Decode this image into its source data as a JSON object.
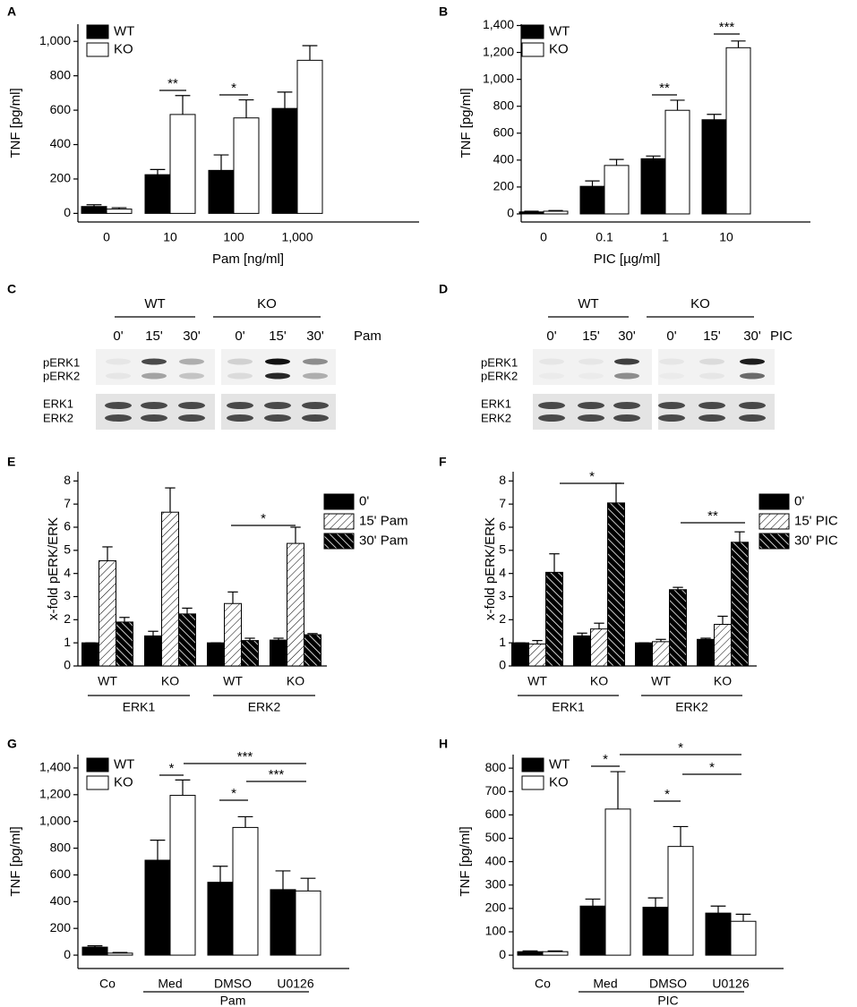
{
  "chart_data": [
    {
      "type": "bar",
      "panel_label": "A",
      "ylabel": "TNF [pg/ml]",
      "xlabel": "Pam [ng/ml]",
      "categories": [
        "0",
        "10",
        "100",
        "1,000"
      ],
      "series": [
        {
          "name": "WT",
          "color": "#000000",
          "values": [
            40,
            225,
            250,
            610
          ],
          "errors": [
            10,
            30,
            90,
            95
          ]
        },
        {
          "name": "KO",
          "color": "#ffffff",
          "values": [
            25,
            575,
            555,
            890
          ],
          "errors": [
            8,
            110,
            105,
            85
          ]
        }
      ],
      "ylim": [
        -50,
        1100
      ],
      "yticks": [
        0,
        200,
        400,
        600,
        800,
        {
          "value": 1000,
          "label": "1,000"
        }
      ],
      "legend": "upper left",
      "annotations": [
        "**",
        "*"
      ]
    },
    {
      "type": "bar",
      "panel_label": "B",
      "ylabel": "TNF [pg/ml]",
      "xlabel": "PIC [µg/ml]",
      "categories": [
        "0",
        "0.1",
        "1",
        "10"
      ],
      "series": [
        {
          "name": "WT",
          "color": "#000000",
          "values": [
            15,
            205,
            410,
            700
          ],
          "errors": [
            5,
            40,
            20,
            40
          ]
        },
        {
          "name": "KO",
          "color": "#ffffff",
          "values": [
            20,
            360,
            770,
            1235
          ],
          "errors": [
            5,
            45,
            75,
            50
          ]
        }
      ],
      "ylim": [
        -60,
        1410
      ],
      "yticks": [
        0,
        200,
        400,
        600,
        800,
        {
          "value": 1000,
          "label": "1,000"
        },
        {
          "value": 1200,
          "label": "1,200"
        },
        {
          "value": 1400,
          "label": "1,400"
        }
      ],
      "legend": "upper left",
      "annotations": [
        "**",
        "***"
      ]
    },
    {
      "type": "blot",
      "panel_label": "C",
      "groups": [
        "WT",
        "KO"
      ],
      "lanes": [
        "0'",
        "15'",
        "30'",
        "0'",
        "15'",
        "30'"
      ],
      "treatment": "Pam",
      "rows": [
        "pERK1",
        "pERK2",
        "ERK1",
        "ERK2"
      ]
    },
    {
      "type": "blot",
      "panel_label": "D",
      "groups": [
        "WT",
        "KO"
      ],
      "lanes": [
        "0'",
        "15'",
        "30'",
        "0'",
        "15'",
        "30'"
      ],
      "treatment": "PIC",
      "rows": [
        "pERK1",
        "pERK2",
        "ERK1",
        "ERK2"
      ]
    },
    {
      "type": "bar",
      "panel_label": "E",
      "ylabel": "x-fold pERK/ERK",
      "categories": [
        "WT",
        "KO",
        "WT",
        "KO"
      ],
      "groups": [
        "ERK1",
        "ERK2"
      ],
      "series": [
        {
          "name": "0'",
          "color": "#000000",
          "values": [
            1,
            1.3,
            1,
            1.12
          ],
          "errors": [
            0,
            0.2,
            0,
            0.08
          ]
        },
        {
          "name": "15' Pam",
          "color": "#ffffff",
          "pattern": "hatch",
          "values": [
            4.55,
            6.65,
            2.7,
            5.3
          ],
          "errors": [
            0.6,
            1.05,
            0.5,
            0.7
          ]
        },
        {
          "name": "30' Pam",
          "color": "#000000",
          "pattern": "hatch-dense",
          "values": [
            1.9,
            2.25,
            1.1,
            1.35
          ],
          "errors": [
            0.2,
            0.25,
            0.1,
            0.05
          ]
        }
      ],
      "ylim": [
        0,
        8.4
      ],
      "yticks": [
        0,
        1,
        2,
        3,
        4,
        5,
        6,
        7,
        8
      ],
      "legend": "right",
      "annotations": [
        "*"
      ]
    },
    {
      "type": "bar",
      "panel_label": "F",
      "ylabel": "x-fold pERK/ERK",
      "categories": [
        "WT",
        "KO",
        "WT",
        "KO"
      ],
      "groups": [
        "ERK1",
        "ERK2"
      ],
      "series": [
        {
          "name": "0'",
          "color": "#000000",
          "values": [
            1,
            1.3,
            1,
            1.15
          ],
          "errors": [
            0,
            0.12,
            0,
            0.05
          ]
        },
        {
          "name": "15' PIC",
          "color": "#ffffff",
          "pattern": "hatch",
          "values": [
            0.95,
            1.6,
            1.05,
            1.8
          ],
          "errors": [
            0.15,
            0.25,
            0.1,
            0.35
          ]
        },
        {
          "name": "30' PIC",
          "color": "#000000",
          "pattern": "hatch-dense",
          "values": [
            4.05,
            7.05,
            3.3,
            5.35
          ],
          "errors": [
            0.8,
            0.85,
            0.1,
            0.45
          ]
        }
      ],
      "ylim": [
        0,
        8.4
      ],
      "yticks": [
        0,
        1,
        2,
        3,
        4,
        5,
        6,
        7,
        8
      ],
      "legend": "right",
      "annotations": [
        "*",
        "**"
      ]
    },
    {
      "type": "bar",
      "panel_label": "G",
      "ylabel": "TNF [pg/ml]",
      "categories": [
        "Co",
        "Med",
        "DMSO",
        "U0126"
      ],
      "group_label": "Pam",
      "series": [
        {
          "name": "WT",
          "color": "#000000",
          "values": [
            60,
            710,
            545,
            490
          ],
          "errors": [
            10,
            150,
            120,
            140
          ]
        },
        {
          "name": "KO",
          "color": "#ffffff",
          "values": [
            15,
            1195,
            955,
            480
          ],
          "errors": [
            5,
            115,
            80,
            95
          ]
        }
      ],
      "ylim": [
        -100,
        1500
      ],
      "yticks": [
        0,
        200,
        400,
        600,
        800,
        {
          "value": 1000,
          "label": "1,000"
        },
        {
          "value": 1200,
          "label": "1,200"
        },
        {
          "value": 1400,
          "label": "1,400"
        }
      ],
      "legend": "upper left",
      "annotations": [
        "*",
        "***",
        "*",
        "***"
      ]
    },
    {
      "type": "bar",
      "panel_label": "H",
      "ylabel": "TNF [pg/ml]",
      "categories": [
        "Co",
        "Med",
        "DMSO",
        "U0126"
      ],
      "group_label": "PIC",
      "series": [
        {
          "name": "WT",
          "color": "#000000",
          "values": [
            15,
            210,
            205,
            180
          ],
          "errors": [
            3,
            30,
            40,
            30
          ]
        },
        {
          "name": "KO",
          "color": "#ffffff",
          "values": [
            15,
            625,
            465,
            145
          ],
          "errors": [
            3,
            160,
            85,
            30
          ]
        }
      ],
      "ylim": [
        -57,
        858
      ],
      "yticks": [
        0,
        100,
        200,
        300,
        400,
        500,
        600,
        700,
        800
      ],
      "legend": "upper left",
      "annotations": [
        "*",
        "*",
        "*",
        "*"
      ]
    }
  ]
}
